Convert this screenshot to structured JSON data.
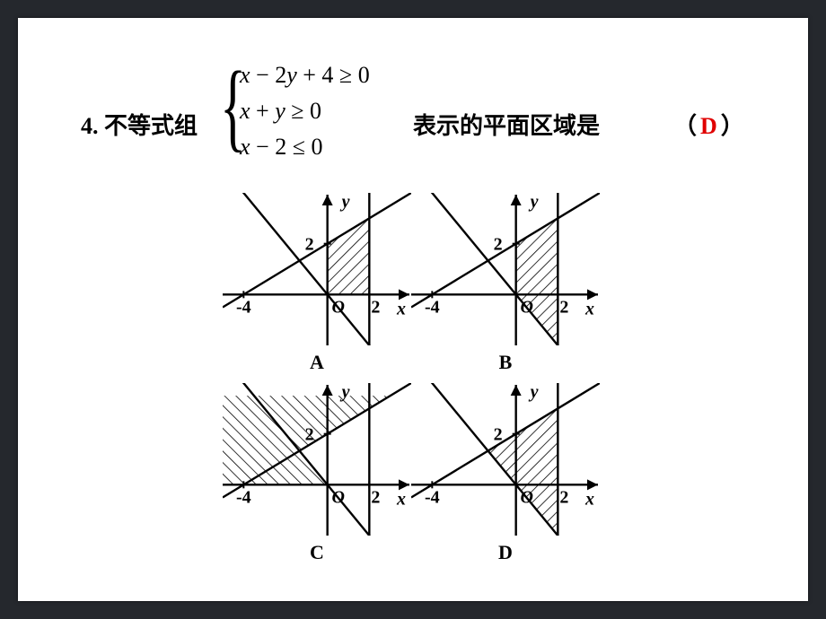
{
  "slide": {
    "bg": "#ffffff",
    "outer_bg": "#25282d"
  },
  "question": {
    "number_label": "4. 不等式组",
    "system": {
      "line1_tex": "x − 2y + 4 ≥ 0",
      "line2_tex": "x + y ≥ 0",
      "line3_tex": "x − 2 ≤ 0"
    },
    "tail_text": "表示的平面区域是",
    "paren_open": "（",
    "paren_close": "）",
    "answer": "D",
    "answer_color": "#e00000"
  },
  "plots": {
    "common": {
      "x_axis_label": "x",
      "y_axis_label": "y",
      "origin_label": "O",
      "x_tick_neg": "-4",
      "x_tick_pos": "2",
      "y_tick": "2",
      "axis_color": "#000000",
      "hatch_color": "#000000",
      "line_width": 2.4,
      "xlim": [
        -5,
        4
      ],
      "ylim": [
        -2,
        4
      ],
      "line_x_eq_2": 2,
      "line_y_eq_half_x_plus_2": {
        "m": 0.5,
        "b": 2
      },
      "line_y_eq_neg_x": {
        "m": -1,
        "b": 0
      }
    },
    "options": [
      {
        "label": "A",
        "region_vertices": [
          [
            0,
            0
          ],
          [
            2,
            0
          ],
          [
            2,
            3
          ],
          [
            0,
            2
          ]
        ],
        "hatch_dir": 1
      },
      {
        "label": "B",
        "region_vertices": [
          [
            0,
            0
          ],
          [
            2,
            -2
          ],
          [
            2,
            3
          ],
          [
            0,
            2
          ]
        ],
        "hatch_dir": 1
      },
      {
        "label": "C",
        "region_vertices": [
          [
            -4,
            0
          ],
          [
            0,
            0
          ],
          [
            -1.33,
            1.33
          ]
        ],
        "hatch_dir": -1,
        "extra_region": [
          [
            -4,
            0
          ],
          [
            -5,
            0
          ],
          [
            -5,
            3.5
          ],
          [
            3,
            3.5
          ],
          [
            2,
            3
          ],
          [
            -1.33,
            1.33
          ]
        ]
      },
      {
        "label": "D",
        "region_vertices": [
          [
            0,
            0
          ],
          [
            2,
            -2
          ],
          [
            2,
            3
          ],
          [
            -1.33,
            1.33
          ]
        ],
        "hatch_dir": 1
      }
    ]
  }
}
